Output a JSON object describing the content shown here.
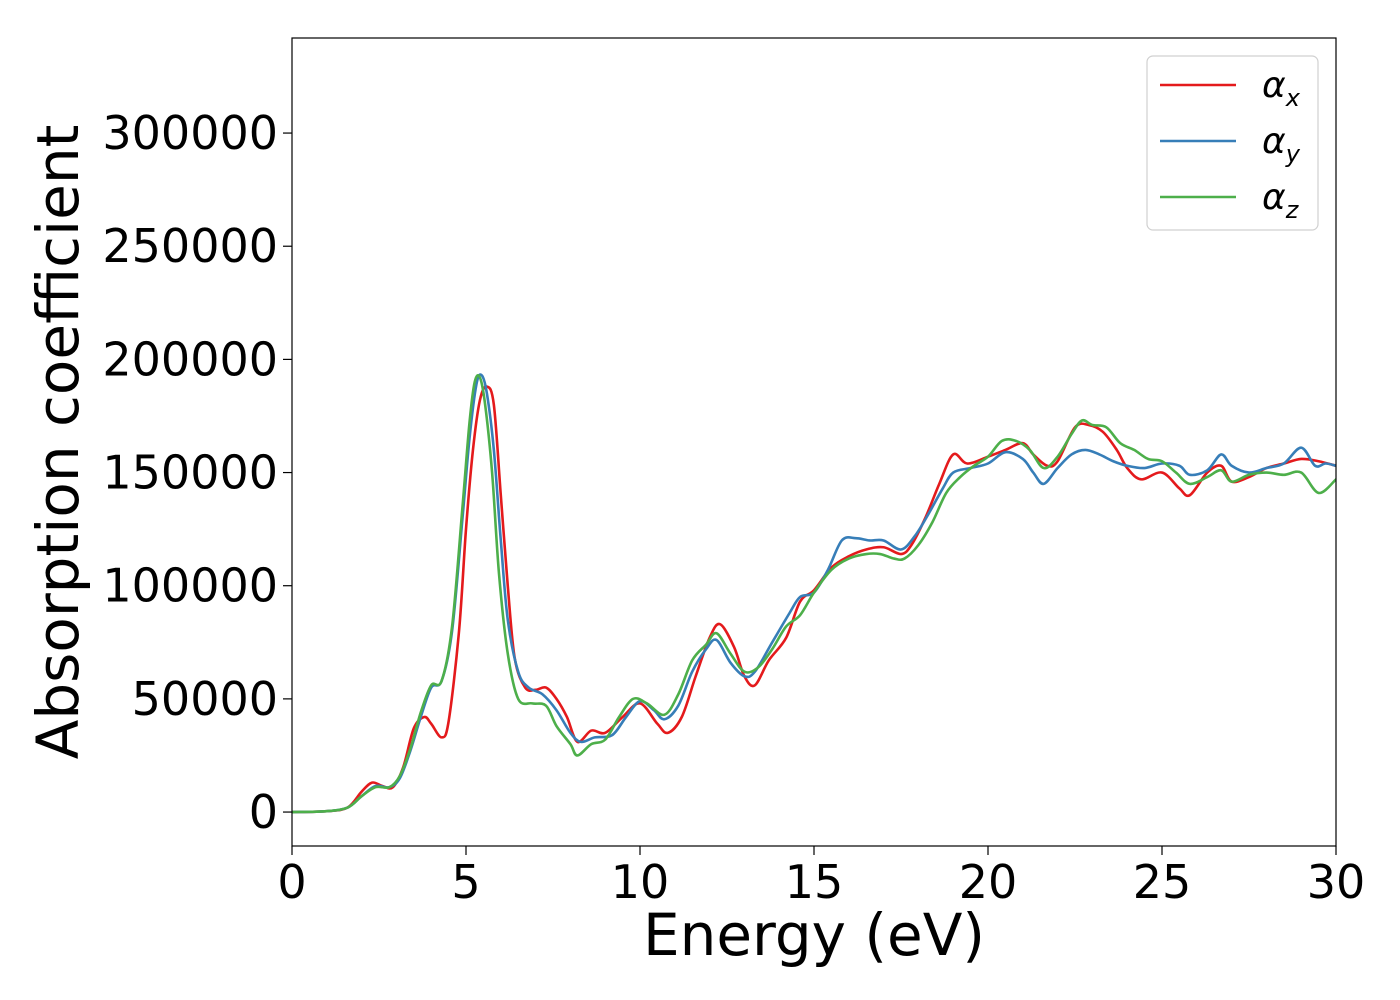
{
  "chart_data": {
    "type": "line",
    "xlabel": "Energy (eV)",
    "ylabel": "Absorption coefficient",
    "xlim": [
      0,
      30
    ],
    "ylim": [
      -15000,
      342000
    ],
    "xticks": [
      0,
      5,
      10,
      15,
      20,
      25,
      30
    ],
    "yticks": [
      0,
      50000,
      100000,
      150000,
      200000,
      250000,
      300000
    ],
    "grid": false,
    "legend_position": "top-right",
    "series": [
      {
        "name": "α",
        "subscript": "x",
        "color": "#e41a1c",
        "points": [
          [
            0,
            0
          ],
          [
            1,
            400
          ],
          [
            1.6,
            2000
          ],
          [
            2.0,
            9000
          ],
          [
            2.3,
            13000
          ],
          [
            2.6,
            11500
          ],
          [
            2.9,
            11000
          ],
          [
            3.2,
            20000
          ],
          [
            3.5,
            37000
          ],
          [
            3.8,
            42000
          ],
          [
            4.0,
            39000
          ],
          [
            4.3,
            33000
          ],
          [
            4.5,
            40000
          ],
          [
            4.8,
            80000
          ],
          [
            5.0,
            125000
          ],
          [
            5.2,
            160000
          ],
          [
            5.4,
            182000
          ],
          [
            5.6,
            188000
          ],
          [
            5.8,
            180000
          ],
          [
            6.0,
            140000
          ],
          [
            6.2,
            100000
          ],
          [
            6.4,
            68000
          ],
          [
            6.7,
            55000
          ],
          [
            7.0,
            54000
          ],
          [
            7.3,
            55000
          ],
          [
            7.6,
            50000
          ],
          [
            7.9,
            42000
          ],
          [
            8.2,
            31000
          ],
          [
            8.6,
            36000
          ],
          [
            9.0,
            35000
          ],
          [
            9.5,
            42000
          ],
          [
            10.0,
            48000
          ],
          [
            10.5,
            39000
          ],
          [
            10.8,
            35000
          ],
          [
            11.2,
            42000
          ],
          [
            11.6,
            60000
          ],
          [
            12.0,
            77000
          ],
          [
            12.3,
            83000
          ],
          [
            12.7,
            73000
          ],
          [
            13.0,
            60000
          ],
          [
            13.3,
            56000
          ],
          [
            13.7,
            67000
          ],
          [
            14.2,
            77000
          ],
          [
            14.6,
            93000
          ],
          [
            15.0,
            98000
          ],
          [
            15.5,
            108000
          ],
          [
            16.0,
            113000
          ],
          [
            16.5,
            116000
          ],
          [
            17.0,
            117000
          ],
          [
            17.5,
            114000
          ],
          [
            17.8,
            118000
          ],
          [
            18.2,
            130000
          ],
          [
            18.6,
            145000
          ],
          [
            19.0,
            158000
          ],
          [
            19.4,
            154000
          ],
          [
            20.0,
            157000
          ],
          [
            20.5,
            160000
          ],
          [
            21.0,
            163000
          ],
          [
            21.3,
            158000
          ],
          [
            21.7,
            153000
          ],
          [
            22.0,
            155000
          ],
          [
            22.5,
            170000
          ],
          [
            22.9,
            171000
          ],
          [
            23.3,
            168000
          ],
          [
            23.7,
            160000
          ],
          [
            24.0,
            152000
          ],
          [
            24.4,
            147000
          ],
          [
            25.0,
            150000
          ],
          [
            25.5,
            143000
          ],
          [
            25.8,
            140000
          ],
          [
            26.3,
            150000
          ],
          [
            26.7,
            153000
          ],
          [
            27.0,
            146000
          ],
          [
            27.5,
            148000
          ],
          [
            28.0,
            152000
          ],
          [
            28.5,
            154000
          ],
          [
            29.0,
            156000
          ],
          [
            29.5,
            155000
          ],
          [
            30.0,
            153000
          ]
        ]
      },
      {
        "name": "α",
        "subscript": "y",
        "color": "#377eb8",
        "points": [
          [
            0,
            0
          ],
          [
            1,
            400
          ],
          [
            1.6,
            2000
          ],
          [
            2.0,
            7000
          ],
          [
            2.4,
            11500
          ],
          [
            2.8,
            11000
          ],
          [
            3.1,
            15000
          ],
          [
            3.4,
            27000
          ],
          [
            3.7,
            42000
          ],
          [
            4.0,
            55000
          ],
          [
            4.3,
            58000
          ],
          [
            4.6,
            80000
          ],
          [
            4.9,
            130000
          ],
          [
            5.1,
            165000
          ],
          [
            5.3,
            189000
          ],
          [
            5.45,
            193000
          ],
          [
            5.6,
            185000
          ],
          [
            5.8,
            160000
          ],
          [
            6.0,
            120000
          ],
          [
            6.2,
            85000
          ],
          [
            6.5,
            62000
          ],
          [
            6.8,
            55000
          ],
          [
            7.2,
            52000
          ],
          [
            7.6,
            45000
          ],
          [
            8.0,
            35000
          ],
          [
            8.3,
            31000
          ],
          [
            8.7,
            33000
          ],
          [
            9.2,
            34000
          ],
          [
            9.6,
            42000
          ],
          [
            10.0,
            49000
          ],
          [
            10.4,
            45000
          ],
          [
            10.7,
            41000
          ],
          [
            11.1,
            47000
          ],
          [
            11.5,
            62000
          ],
          [
            11.9,
            72000
          ],
          [
            12.2,
            76000
          ],
          [
            12.6,
            66000
          ],
          [
            13.0,
            60000
          ],
          [
            13.3,
            62000
          ],
          [
            13.8,
            75000
          ],
          [
            14.3,
            88000
          ],
          [
            14.6,
            95000
          ],
          [
            15.0,
            97000
          ],
          [
            15.4,
            107000
          ],
          [
            15.8,
            120000
          ],
          [
            16.2,
            121000
          ],
          [
            16.6,
            120000
          ],
          [
            17.0,
            120000
          ],
          [
            17.5,
            116000
          ],
          [
            17.9,
            122000
          ],
          [
            18.3,
            132000
          ],
          [
            18.7,
            143000
          ],
          [
            19.0,
            150000
          ],
          [
            19.5,
            152000
          ],
          [
            20.0,
            154000
          ],
          [
            20.5,
            159000
          ],
          [
            21.0,
            156000
          ],
          [
            21.3,
            150000
          ],
          [
            21.6,
            145000
          ],
          [
            22.0,
            152000
          ],
          [
            22.4,
            158000
          ],
          [
            22.8,
            160000
          ],
          [
            23.2,
            158000
          ],
          [
            23.6,
            155000
          ],
          [
            24.0,
            153000
          ],
          [
            24.5,
            152000
          ],
          [
            25.0,
            154000
          ],
          [
            25.5,
            153000
          ],
          [
            25.8,
            149000
          ],
          [
            26.3,
            151000
          ],
          [
            26.7,
            158000
          ],
          [
            27.0,
            153000
          ],
          [
            27.5,
            150000
          ],
          [
            28.0,
            152000
          ],
          [
            28.5,
            154000
          ],
          [
            29.0,
            161000
          ],
          [
            29.4,
            153000
          ],
          [
            29.7,
            154000
          ],
          [
            30.0,
            153000
          ]
        ]
      },
      {
        "name": "α",
        "subscript": "z",
        "color": "#4daf4a",
        "points": [
          [
            0,
            0
          ],
          [
            1,
            400
          ],
          [
            1.6,
            2000
          ],
          [
            2.0,
            7000
          ],
          [
            2.4,
            11000
          ],
          [
            2.8,
            11000
          ],
          [
            3.1,
            16000
          ],
          [
            3.4,
            28000
          ],
          [
            3.7,
            44000
          ],
          [
            4.0,
            56000
          ],
          [
            4.3,
            58000
          ],
          [
            4.6,
            82000
          ],
          [
            4.9,
            135000
          ],
          [
            5.1,
            172000
          ],
          [
            5.25,
            190000
          ],
          [
            5.4,
            192000
          ],
          [
            5.55,
            180000
          ],
          [
            5.75,
            150000
          ],
          [
            5.95,
            105000
          ],
          [
            6.2,
            70000
          ],
          [
            6.5,
            50000
          ],
          [
            6.9,
            48000
          ],
          [
            7.3,
            47000
          ],
          [
            7.6,
            38000
          ],
          [
            8.0,
            30000
          ],
          [
            8.2,
            25000
          ],
          [
            8.6,
            30000
          ],
          [
            9.0,
            32000
          ],
          [
            9.4,
            42000
          ],
          [
            9.8,
            50000
          ],
          [
            10.2,
            48000
          ],
          [
            10.7,
            43000
          ],
          [
            11.1,
            52000
          ],
          [
            11.5,
            67000
          ],
          [
            11.9,
            74000
          ],
          [
            12.2,
            79000
          ],
          [
            12.6,
            70000
          ],
          [
            13.0,
            62000
          ],
          [
            13.4,
            64000
          ],
          [
            13.8,
            72000
          ],
          [
            14.2,
            82000
          ],
          [
            14.6,
            87000
          ],
          [
            15.0,
            97000
          ],
          [
            15.5,
            107000
          ],
          [
            16.0,
            112000
          ],
          [
            16.5,
            114000
          ],
          [
            16.9,
            114000
          ],
          [
            17.3,
            112000
          ],
          [
            17.6,
            112000
          ],
          [
            18.0,
            118000
          ],
          [
            18.4,
            128000
          ],
          [
            18.8,
            141000
          ],
          [
            19.2,
            148000
          ],
          [
            19.6,
            153000
          ],
          [
            20.0,
            157000
          ],
          [
            20.4,
            164000
          ],
          [
            20.8,
            164000
          ],
          [
            21.2,
            160000
          ],
          [
            21.6,
            152000
          ],
          [
            22.0,
            157000
          ],
          [
            22.4,
            167000
          ],
          [
            22.7,
            173000
          ],
          [
            23.0,
            171000
          ],
          [
            23.4,
            170000
          ],
          [
            23.8,
            163000
          ],
          [
            24.2,
            160000
          ],
          [
            24.6,
            156000
          ],
          [
            25.0,
            155000
          ],
          [
            25.4,
            150000
          ],
          [
            25.8,
            145000
          ],
          [
            26.3,
            148000
          ],
          [
            26.7,
            151000
          ],
          [
            27.0,
            146000
          ],
          [
            27.5,
            149000
          ],
          [
            28.0,
            150000
          ],
          [
            28.5,
            149000
          ],
          [
            29.0,
            150000
          ],
          [
            29.5,
            141000
          ],
          [
            30.0,
            147000
          ]
        ]
      }
    ]
  }
}
